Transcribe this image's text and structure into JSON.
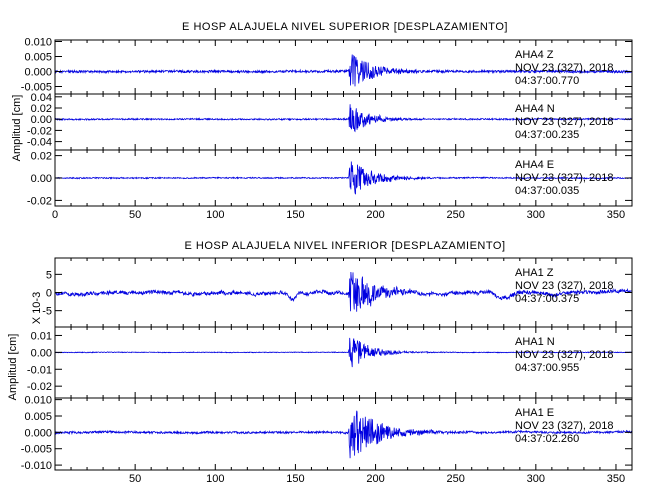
{
  "chart_data": [
    {
      "type": "line",
      "title": "E HOSP ALAJUELA NIVEL SUPERIOR [DESPLAZAMIENTO]",
      "ylabel": "Amplitud [cm]",
      "xlim": [
        0,
        360
      ],
      "xticks": [
        "0",
        "50",
        "100",
        "150",
        "200",
        "250",
        "300",
        "350"
      ],
      "channels": [
        {
          "station": "AHA4",
          "component": "Z",
          "date": "NOV 23 (327), 2018",
          "time": "04:37:00.770",
          "ylim": [
            -0.0075,
            0.0105
          ],
          "yticks": [
            0.01,
            0.005,
            0.0,
            -0.005
          ],
          "ytick_labels": [
            "0.010",
            "0.005",
            "0.000",
            "-0.005"
          ],
          "noise": 0.0004,
          "peak": 0.0068,
          "onset": 184,
          "decay": 13,
          "wander": 0.0001,
          "extra_dips": []
        },
        {
          "station": "AHA4",
          "component": "N",
          "date": "NOV 23 (327), 2018",
          "time": "04:37:00.235",
          "ylim": [
            -0.055,
            0.045
          ],
          "yticks": [
            0.04,
            0.02,
            0.0,
            -0.02,
            -0.04
          ],
          "ytick_labels": [
            "0.04",
            "0.02",
            "0.00",
            "-0.02",
            "-0.04"
          ],
          "noise": 0.0012,
          "peak": 0.031,
          "onset": 184,
          "decay": 11,
          "wander": 0.0003,
          "extra_dips": []
        },
        {
          "station": "AHA4",
          "component": "E",
          "date": "NOV 23 (327), 2018",
          "time": "04:37:00.035",
          "ylim": [
            -0.025,
            0.025
          ],
          "yticks": [
            0.02,
            0.0,
            -0.02
          ],
          "ytick_labels": [
            "0.02",
            "0.00",
            "-0.02"
          ],
          "noise": 0.0005,
          "peak": 0.019,
          "onset": 184,
          "decay": 13,
          "wander": 0.0002,
          "extra_dips": []
        }
      ]
    },
    {
      "type": "line",
      "title": "E HOSP ALAJUELA NIVEL INFERIOR [DESPLAZAMIENTO]",
      "ylabel": "Amplitud [cm]",
      "scale_label": "X 10-3",
      "xlim": [
        0,
        360
      ],
      "xticks": [
        "50",
        "100",
        "150",
        "200",
        "250",
        "300",
        "350"
      ],
      "channels": [
        {
          "station": "AHA1",
          "component": "Z",
          "date": "NOV 23 (327), 2018",
          "time": "04:37:00.375",
          "ylim": [
            -9.5,
            9.5
          ],
          "yticks": [
            5,
            0,
            -5
          ],
          "ytick_labels": [
            "5",
            "0",
            "-5"
          ],
          "noise": 0.45,
          "peak": 7.8,
          "onset": 184,
          "decay": 14,
          "wander": 0.6,
          "extra_dips": [
            [
              148,
              -1.8,
              2.5
            ],
            [
              277,
              -1.3,
              3
            ],
            [
              282,
              -1.6,
              4
            ]
          ]
        },
        {
          "station": "AHA1",
          "component": "N",
          "date": "NOV 23 (327), 2018",
          "time": "04:37:00.955",
          "ylim": [
            -0.027,
            0.015
          ],
          "yticks": [
            0.01,
            0.0,
            -0.01,
            -0.02
          ],
          "ytick_labels": [
            "0.01",
            "0.00",
            "-0.01",
            "-0.02"
          ],
          "noise": 0.0002,
          "peak": 0.011,
          "onset": 184,
          "decay": 12,
          "wander": 0.0001,
          "extra_dips": []
        },
        {
          "station": "AHA1",
          "component": "E",
          "date": "NOV 23 (327), 2018",
          "time": "04:37:02.260",
          "ylim": [
            -0.0115,
            0.0105
          ],
          "yticks": [
            0.01,
            0.005,
            0.0,
            -0.005,
            -0.01
          ],
          "ytick_labels": [
            "0.010",
            "0.005",
            "0.000",
            "-0.005",
            "-0.010"
          ],
          "noise": 0.0003,
          "peak": 0.0088,
          "onset": 184,
          "decay": 18,
          "wander": 0.0002,
          "extra_dips": []
        }
      ]
    }
  ],
  "colors": {
    "trace": "#0000e0",
    "axis": "#000000"
  }
}
